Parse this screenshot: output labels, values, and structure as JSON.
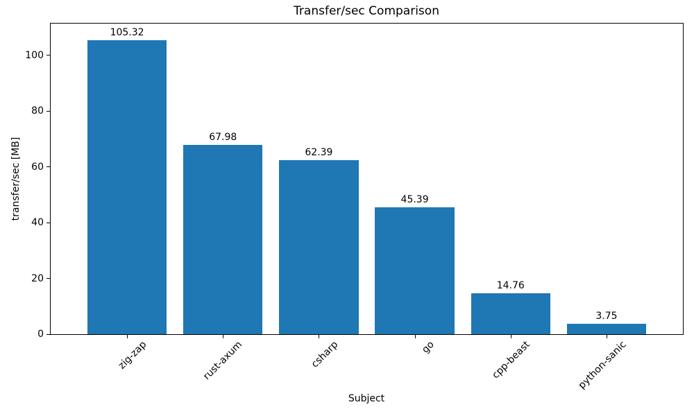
{
  "chart_data": {
    "type": "bar",
    "title": "Transfer/sec Comparison",
    "xlabel": "Subject",
    "ylabel": "transfer/sec [MB]",
    "categories": [
      "zig-zap",
      "rust-axum",
      "csharp",
      "go",
      "cpp-beast",
      "python-sanic"
    ],
    "values": [
      105.32,
      67.98,
      62.39,
      45.39,
      14.76,
      3.75
    ],
    "value_labels": [
      "105.32",
      "67.98",
      "62.39",
      "45.39",
      "14.76",
      "3.75"
    ],
    "yticks": [
      0,
      20,
      40,
      60,
      80,
      100
    ],
    "ylim": [
      0,
      111.4
    ],
    "xtick_rotation_deg": 45,
    "grid": false,
    "legend": null,
    "bar_color": "#1f77b4",
    "spine_color": "#000000",
    "text_color": "#000000",
    "background_color": "#ffffff"
  }
}
